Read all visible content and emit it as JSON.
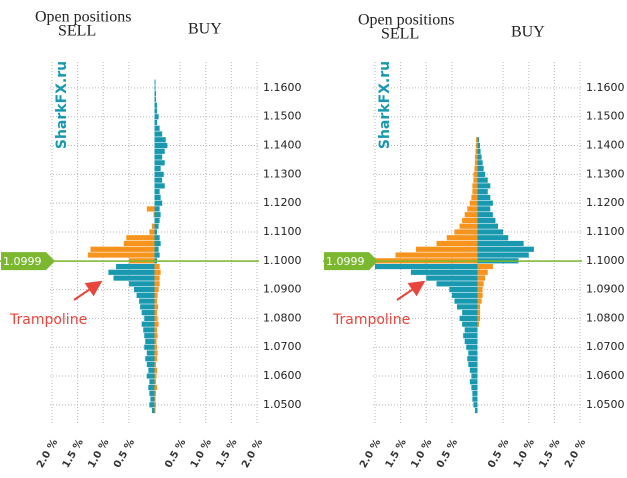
{
  "chart_data": [
    {
      "type": "bar",
      "title": "Open positions",
      "watermark": "SharkFX.ru",
      "annotation": "Trampoline",
      "price": 1.0999,
      "price_color": "#7cb82f",
      "levels": [
        1.048,
        1.05,
        1.052,
        1.054,
        1.056,
        1.058,
        1.06,
        1.062,
        1.064,
        1.066,
        1.068,
        1.07,
        1.072,
        1.074,
        1.076,
        1.078,
        1.08,
        1.082,
        1.084,
        1.086,
        1.088,
        1.09,
        1.092,
        1.094,
        1.096,
        1.098,
        1.1,
        1.102,
        1.104,
        1.106,
        1.108,
        1.11,
        1.112,
        1.114,
        1.116,
        1.118,
        1.12,
        1.122,
        1.124,
        1.126,
        1.128,
        1.13,
        1.132,
        1.134,
        1.136,
        1.138,
        1.14,
        1.142,
        1.144,
        1.146,
        1.148,
        1.15,
        1.152,
        1.154,
        1.156,
        1.158,
        1.16,
        1.162
      ],
      "series": [
        {
          "name": "SELL",
          "color_above": "#f7941d",
          "color_below": "#1899b0",
          "values": [
            0.05,
            0.1,
            0.08,
            0.1,
            0.12,
            0.1,
            0.15,
            0.12,
            0.15,
            0.18,
            0.15,
            0.2,
            0.18,
            0.2,
            0.22,
            0.25,
            0.2,
            0.25,
            0.28,
            0.3,
            0.35,
            0.4,
            0.5,
            0.8,
            0.9,
            0.75,
            0.5,
            1.3,
            1.25,
            0.6,
            0.55,
            0.1,
            0.05,
            0,
            0.02,
            0.15,
            0,
            0,
            0,
            0,
            0,
            0,
            0,
            0,
            0,
            0,
            0,
            0,
            0,
            0,
            0,
            0,
            0,
            0,
            0,
            0,
            0,
            0
          ]
        },
        {
          "name": "BUY",
          "color_above": "#1899b0",
          "color_below": "#f7941d",
          "values": [
            0.02,
            0.03,
            0.02,
            0.03,
            0.05,
            0.03,
            0.04,
            0.05,
            0.03,
            0.05,
            0.06,
            0.05,
            0.04,
            0.06,
            0.05,
            0.08,
            0.06,
            0.05,
            0.07,
            0.05,
            0.06,
            0.08,
            0.1,
            0.1,
            0.12,
            0.1,
            0.05,
            0.1,
            0.08,
            0.12,
            0.1,
            0.05,
            0.08,
            0.1,
            0.12,
            0.1,
            0.15,
            0.12,
            0.1,
            0.2,
            0.15,
            0.18,
            0.12,
            0.2,
            0.15,
            0.2,
            0.25,
            0.22,
            0.15,
            0.1,
            0.05,
            0.08,
            0.05,
            0.05,
            0.03,
            0.03,
            0.02,
            0.02
          ]
        }
      ],
      "xlim": [
        -2,
        2
      ],
      "xticks": [
        {
          "value": -2,
          "label": "2.0 %"
        },
        {
          "value": -1.5,
          "label": "1.5 %"
        },
        {
          "value": -1,
          "label": "1.0 %"
        },
        {
          "value": -0.5,
          "label": "0.5 %"
        },
        {
          "value": 0.5,
          "label": "0.5 %"
        },
        {
          "value": 1,
          "label": "1.0 %"
        },
        {
          "value": 1.5,
          "label": "1.5 %"
        },
        {
          "value": 2,
          "label": "2.0 %"
        }
      ],
      "ylim": [
        1.043,
        1.169
      ],
      "yticks": [
        {
          "value": 1.16,
          "label": "1.1600"
        },
        {
          "value": 1.15,
          "label": "1.1500"
        },
        {
          "value": 1.14,
          "label": "1.1400"
        },
        {
          "value": 1.13,
          "label": "1.1300"
        },
        {
          "value": 1.12,
          "label": "1.1200"
        },
        {
          "value": 1.11,
          "label": "1.1100"
        },
        {
          "value": 1.1,
          "label": "1.1000"
        },
        {
          "value": 1.09,
          "label": "1.0900"
        },
        {
          "value": 1.08,
          "label": "1.0800"
        },
        {
          "value": 1.07,
          "label": "1.0700"
        },
        {
          "value": 1.06,
          "label": "1.0600"
        },
        {
          "value": 1.05,
          "label": "1.0500"
        }
      ],
      "grid": true
    },
    {
      "type": "bar",
      "title": "Open positions",
      "watermark": "SharkFX.ru",
      "annotation": "Trampoline",
      "price": 1.0999,
      "price_color": "#7cb82f",
      "levels": [
        1.048,
        1.05,
        1.052,
        1.054,
        1.056,
        1.058,
        1.06,
        1.062,
        1.064,
        1.066,
        1.068,
        1.07,
        1.072,
        1.074,
        1.076,
        1.078,
        1.08,
        1.082,
        1.084,
        1.086,
        1.088,
        1.09,
        1.092,
        1.094,
        1.096,
        1.098,
        1.1,
        1.102,
        1.104,
        1.106,
        1.108,
        1.11,
        1.112,
        1.114,
        1.116,
        1.118,
        1.12,
        1.122,
        1.124,
        1.126,
        1.128,
        1.13,
        1.132,
        1.134,
        1.136,
        1.138,
        1.14,
        1.142,
        1.144,
        1.146,
        1.148,
        1.15,
        1.152,
        1.154,
        1.156,
        1.158,
        1.16,
        1.162
      ],
      "series": [
        {
          "name": "SELL",
          "color_above": "#f7941d",
          "color_below": "#1899b0",
          "values": [
            0.05,
            0.08,
            0.1,
            0.1,
            0.12,
            0.15,
            0.12,
            0.15,
            0.18,
            0.2,
            0.18,
            0.22,
            0.25,
            0.28,
            0.25,
            0.3,
            0.35,
            0.3,
            0.4,
            0.45,
            0.5,
            0.55,
            0.8,
            1.0,
            1.3,
            2.0,
            2.0,
            1.6,
            1.2,
            0.8,
            0.6,
            0.45,
            0.35,
            0.3,
            0.25,
            0.2,
            0.15,
            0.12,
            0.1,
            0.1,
            0.08,
            0.08,
            0.06,
            0.05,
            0.05,
            0.04,
            0.03,
            0.03,
            0,
            0,
            0,
            0,
            0,
            0,
            0,
            0,
            0,
            0
          ]
        },
        {
          "name": "BUY",
          "color_above": "#1899b0",
          "color_below": "#f7941d",
          "values": [
            0,
            0,
            0,
            0,
            0,
            0,
            0,
            0,
            0,
            0,
            0,
            0,
            0,
            0,
            0,
            0.03,
            0.05,
            0.05,
            0.05,
            0.08,
            0.1,
            0.1,
            0.12,
            0.15,
            0.2,
            0.3,
            0.8,
            1.0,
            1.1,
            0.9,
            0.6,
            0.5,
            0.4,
            0.35,
            0.3,
            0.25,
            0.3,
            0.25,
            0.2,
            0.25,
            0.2,
            0.15,
            0.12,
            0.1,
            0.08,
            0.06,
            0.05,
            0.03,
            0,
            0,
            0,
            0,
            0,
            0,
            0,
            0,
            0,
            0
          ]
        }
      ],
      "xlim": [
        -2,
        2
      ],
      "xticks": [
        {
          "value": -2,
          "label": "2.0 %"
        },
        {
          "value": -1.5,
          "label": "1.5 %"
        },
        {
          "value": -1,
          "label": "1.0 %"
        },
        {
          "value": -0.5,
          "label": "0.5 %"
        },
        {
          "value": 0.5,
          "label": "0.5 %"
        },
        {
          "value": 1,
          "label": "1.0 %"
        },
        {
          "value": 1.5,
          "label": "1.5 %"
        },
        {
          "value": 2,
          "label": "2.0 %"
        }
      ],
      "ylim": [
        1.043,
        1.169
      ],
      "yticks": [
        {
          "value": 1.16,
          "label": "1.1600"
        },
        {
          "value": 1.15,
          "label": "1.1500"
        },
        {
          "value": 1.14,
          "label": "1.1400"
        },
        {
          "value": 1.13,
          "label": "1.1300"
        },
        {
          "value": 1.12,
          "label": "1.1200"
        },
        {
          "value": 1.11,
          "label": "1.1100"
        },
        {
          "value": 1.1,
          "label": "1.1000"
        },
        {
          "value": 1.09,
          "label": "1.0900"
        },
        {
          "value": 1.08,
          "label": "1.0800"
        },
        {
          "value": 1.07,
          "label": "1.0700"
        },
        {
          "value": 1.06,
          "label": "1.0600"
        },
        {
          "value": 1.05,
          "label": "1.0500"
        }
      ],
      "grid": true
    }
  ]
}
